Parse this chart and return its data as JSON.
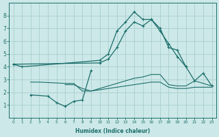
{
  "xlabel": "Humidex (Indice chaleur)",
  "x_values": [
    0,
    1,
    2,
    3,
    4,
    5,
    6,
    7,
    8,
    9,
    10,
    11,
    12,
    13,
    14,
    15,
    16,
    17,
    18,
    19,
    20,
    21,
    22,
    23
  ],
  "line_main": [
    4.2,
    4.0,
    null,
    null,
    null,
    null,
    null,
    null,
    null,
    null,
    4.5,
    5.0,
    6.8,
    7.5,
    8.3,
    7.7,
    7.7,
    7.0,
    5.5,
    5.3,
    4.0,
    null,
    null,
    null
  ],
  "line_valley": [
    null,
    null,
    1.8,
    null,
    1.7,
    1.2,
    0.9,
    1.3,
    1.4,
    3.7,
    null,
    null,
    null,
    null,
    null,
    null,
    null,
    null,
    null,
    null,
    null,
    null,
    null,
    null
  ],
  "line_flat1": [
    4.2,
    null,
    null,
    null,
    null,
    null,
    null,
    null,
    null,
    null,
    4.3,
    4.6,
    5.5,
    6.8,
    7.5,
    7.2,
    7.7,
    6.8,
    5.8,
    4.8,
    4.0,
    2.9,
    3.5,
    2.5
  ],
  "line_flat2": [
    null,
    null,
    2.8,
    2.8,
    null,
    null,
    2.7,
    2.7,
    2.1,
    2.1,
    2.3,
    2.5,
    2.7,
    2.9,
    3.1,
    3.2,
    3.4,
    3.4,
    2.6,
    2.5,
    2.5,
    2.9,
    null,
    2.5
  ],
  "line_flat3": [
    null,
    null,
    null,
    null,
    null,
    null,
    2.6,
    2.6,
    2.3,
    2.1,
    2.2,
    2.3,
    2.4,
    2.5,
    2.6,
    2.7,
    2.8,
    2.8,
    2.4,
    2.3,
    2.3,
    2.4,
    null,
    2.4
  ],
  "bg_color": "#cce8e8",
  "line_color": "#1a6e6a",
  "grid_color": "#aacece",
  "ylim": [
    0,
    9
  ],
  "yticks": [
    1,
    2,
    3,
    4,
    5,
    6,
    7,
    8
  ],
  "xticks": [
    0,
    1,
    2,
    3,
    4,
    5,
    6,
    7,
    8,
    9,
    10,
    11,
    12,
    13,
    14,
    15,
    16,
    17,
    18,
    19,
    20,
    21,
    22,
    23
  ],
  "xtick_labels": [
    "0",
    "1",
    "2",
    "3",
    "4",
    "5",
    "6",
    "7",
    "8",
    "9",
    "10",
    "11",
    "12",
    "13",
    "14",
    "15",
    "16",
    "17",
    "18",
    "19",
    "20",
    "21",
    "22",
    "23"
  ]
}
